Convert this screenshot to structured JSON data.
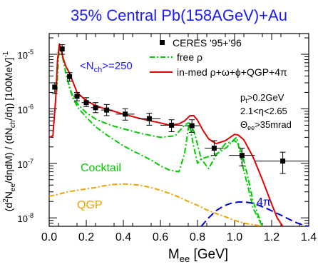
{
  "chart_data": {
    "type": "line",
    "title": "35% Central Pb(158AGeV)+Au",
    "xlabel_main": "M",
    "xlabel_sub": "ee",
    "xlabel_unit": " [GeV]",
    "ylabel": "(d²N_ee/dηdM) / (dN_ch/dη)  [100MeV]⁻¹",
    "ylabel_parts": {
      "p1": "(d",
      "p1_sup": "2",
      "p2": "N",
      "p2_sub": "ee",
      "p3": "/dηdM) / (dN",
      "p3_sub": "ch",
      "p4": "/dη)  [100MeV]",
      "p4_sup": "-1"
    },
    "xlim": [
      0.0,
      1.4
    ],
    "ylim": [
      7e-09,
      2.4e-05
    ],
    "yscale": "log",
    "x_ticks": [
      0.0,
      0.2,
      0.4,
      0.6,
      0.8,
      1.0,
      1.2,
      1.4
    ],
    "x_tick_labels": [
      "0.0",
      "0.2",
      "0.4",
      "0.6",
      "0.8",
      "1.0",
      "1.2",
      "1.4"
    ],
    "y_major_ticks": [
      1e-08,
      1e-07,
      1e-06,
      1e-05
    ],
    "y_tick_labels": [
      {
        "base": "10",
        "exp": "-8"
      },
      {
        "base": "10",
        "exp": "-7"
      },
      {
        "base": "10",
        "exp": "-6"
      },
      {
        "base": "10",
        "exp": "-5"
      }
    ],
    "colors": {
      "data": "#000000",
      "free_rho": "#00cc00",
      "in_med": "#e60000",
      "cocktail": "#00cc00",
      "qgp": "#f0a000",
      "four_pi": "#0000dd",
      "title": "#1a1aff",
      "nch": "#1a1aff"
    },
    "legend": {
      "position": "top-right",
      "entries": [
        {
          "label": "CERES  '95+'96",
          "style": "marker"
        },
        {
          "label": "free ρ",
          "style": "dash-dot-green"
        },
        {
          "label": "in-med ρ+ω+ϕ+QGP+4π",
          "style": "solid-red"
        }
      ]
    },
    "annotations": {
      "nch": {
        "pre": "<N",
        "sub": "ch",
        "post": ">=250"
      },
      "cuts": [
        {
          "pre": "p",
          "sub": "t",
          "post": ">0.2GeV"
        },
        {
          "pre": "2.1<η<2.65",
          "sub": "",
          "post": ""
        },
        {
          "pre": "Θ",
          "sub": "ee",
          "post": ">35mrad"
        }
      ],
      "cocktail": "Cocktail",
      "qgp": "QGP",
      "four_pi": "4π"
    },
    "series": [
      {
        "name": "CERES '95+'96",
        "kind": "data",
        "x": [
          0.03,
          0.07,
          0.11,
          0.15,
          0.2,
          0.25,
          0.31,
          0.41,
          0.54,
          0.66,
          0.77,
          0.89,
          1.04,
          1.26
        ],
        "y": [
          2.5e-06,
          1.25e-05,
          3.9e-06,
          1.7e-06,
          1.3e-06,
          1.05e-06,
          9.5e-07,
          8e-07,
          6.6e-07,
          5e-07,
          4.9e-07,
          1.9e-07,
          1.4e-07,
          1.1e-07
        ],
        "ylow": [
          1.9e-06,
          1e-05,
          3.2e-06,
          1.4e-06,
          1.1e-06,
          8.5e-07,
          7.5e-07,
          6.2e-07,
          5e-07,
          3.8e-07,
          3.7e-07,
          1.4e-07,
          9e-08,
          6.5e-08
        ],
        "yhigh": [
          3e-06,
          1.5e-05,
          4.6e-06,
          2e-06,
          1.6e-06,
          1.3e-06,
          1.2e-06,
          1e-06,
          8.3e-07,
          6.3e-07,
          6.3e-07,
          2.6e-07,
          1.9e-07,
          1.6e-07
        ],
        "xerr": [
          0.01,
          0.01,
          0.01,
          0.02,
          0.025,
          0.025,
          0.03,
          0.05,
          0.06,
          0.06,
          0.04,
          0.05,
          0.07,
          0.15
        ]
      },
      {
        "name": "in-med ρ+ω+ϕ+QGP+4π",
        "kind": "line",
        "x": [
          0.0,
          0.02,
          0.035,
          0.045,
          0.055,
          0.065,
          0.075,
          0.09,
          0.11,
          0.13,
          0.15,
          0.2,
          0.25,
          0.3,
          0.35,
          0.4,
          0.5,
          0.6,
          0.65,
          0.7,
          0.73,
          0.76,
          0.78,
          0.8,
          0.83,
          0.86,
          0.9,
          0.95,
          1.0,
          1.02,
          1.05,
          1.1,
          1.15,
          1.2,
          1.23,
          1.26
        ],
        "y": [
          3e-07,
          3.2e-07,
          1.5e-06,
          8e-06,
          1.55e-05,
          1.2e-05,
          8.5e-06,
          6e-06,
          4.5e-06,
          3e-06,
          2e-06,
          1.4e-06,
          1.15e-06,
          1e-06,
          9e-07,
          8e-07,
          6.5e-07,
          5.5e-07,
          5e-07,
          5.3e-07,
          6e-07,
          7.5e-07,
          7.5e-07,
          6.2e-07,
          4e-07,
          2.8e-07,
          2.3e-07,
          2.6e-07,
          3.4e-07,
          3.3e-07,
          2.7e-07,
          1.3e-07,
          5e-08,
          1.8e-08,
          1e-08,
          7e-09
        ]
      },
      {
        "name": "free ρ",
        "kind": "line",
        "x": [
          0.04,
          0.05,
          0.06,
          0.075,
          0.09,
          0.11,
          0.13,
          0.16,
          0.2,
          0.25,
          0.3,
          0.35,
          0.4,
          0.5,
          0.6,
          0.68,
          0.73,
          0.75,
          0.77,
          0.79,
          0.82,
          0.86,
          0.9,
          0.95,
          1.0,
          1.02,
          1.04,
          1.07,
          1.1,
          1.15
        ],
        "y": [
          2e-06,
          9e-06,
          1.4e-05,
          8e-06,
          4.5e-06,
          2.5e-06,
          1.6e-06,
          1.15e-06,
          8.5e-07,
          6.5e-07,
          5.5e-07,
          4.8e-07,
          4.3e-07,
          3.5e-07,
          3e-07,
          3.2e-07,
          5e-07,
          5.5e-07,
          5e-07,
          3e-07,
          1.2e-07,
          8e-08,
          1.4e-07,
          2.3e-07,
          2.6e-07,
          2.3e-07,
          1.5e-07,
          6e-08,
          2e-08,
          7e-09
        ]
      },
      {
        "name": "Cocktail",
        "kind": "line",
        "x": [
          0.04,
          0.05,
          0.06,
          0.075,
          0.09,
          0.11,
          0.13,
          0.16,
          0.2,
          0.25,
          0.3,
          0.35,
          0.4,
          0.45,
          0.5,
          0.55,
          0.6,
          0.65,
          0.7,
          0.73,
          0.755,
          0.78,
          0.8,
          0.82,
          0.85,
          0.88,
          0.92,
          0.96,
          0.99,
          1.01,
          1.02,
          1.04,
          1.07,
          1.1,
          1.15
        ],
        "y": [
          2e-06,
          9e-06,
          1.4e-05,
          8e-06,
          4.5e-06,
          2.4e-06,
          1.5e-06,
          1e-06,
          7e-07,
          4.7e-07,
          3.5e-07,
          2.7e-07,
          2.1e-07,
          1.7e-07,
          1.4e-07,
          1.15e-07,
          9e-08,
          7.5e-08,
          7e-08,
          1.5e-07,
          5.5e-07,
          2e-07,
          1e-07,
          1.2e-07,
          1.3e-07,
          1.4e-07,
          1.6e-07,
          2e-07,
          2.6e-07,
          3e-07,
          2.2e-07,
          1e-07,
          4e-08,
          1.5e-08,
          7e-09
        ]
      },
      {
        "name": "QGP",
        "kind": "line",
        "x": [
          0.0,
          0.05,
          0.1,
          0.15,
          0.2,
          0.25,
          0.3,
          0.35,
          0.4,
          0.45,
          0.5,
          0.55,
          0.6,
          0.65,
          0.7,
          0.75,
          0.8,
          0.85,
          0.9,
          0.95,
          1.0,
          1.05,
          1.1,
          1.15
        ],
        "y": [
          2.5e-08,
          2.7e-08,
          3e-08,
          3.2e-08,
          3.4e-08,
          3.6e-08,
          3.9e-08,
          4.1e-08,
          4.2e-08,
          4.1e-08,
          3.9e-08,
          3.6e-08,
          3.2e-08,
          2.8e-08,
          2.4e-08,
          2e-08,
          1.7e-08,
          1.4e-08,
          1.2e-08,
          1.05e-08,
          9e-09,
          8e-09,
          7.5e-09,
          7e-09
        ]
      },
      {
        "name": "4π",
        "kind": "line",
        "x": [
          0.82,
          0.86,
          0.9,
          0.94,
          0.98,
          1.02,
          1.06,
          1.1,
          1.14,
          1.18,
          1.22,
          1.26,
          1.3,
          1.34,
          1.38,
          1.4
        ],
        "y": [
          7e-09,
          1e-08,
          1.35e-08,
          1.65e-08,
          1.85e-08,
          1.95e-08,
          1.95e-08,
          1.85e-08,
          1.65e-08,
          1.45e-08,
          1.25e-08,
          1.08e-08,
          9.2e-09,
          8e-09,
          7.2e-09,
          7e-09
        ]
      }
    ]
  }
}
